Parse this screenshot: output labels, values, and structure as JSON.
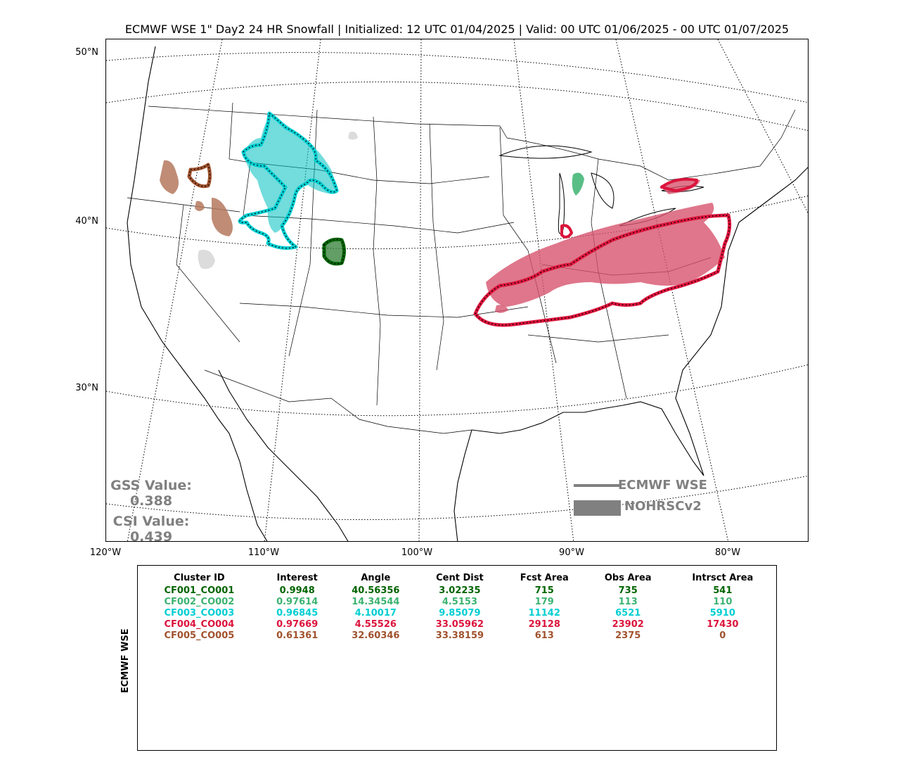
{
  "title": "ECMWF WSE 1\" Day2 24 HR Snowfall | Initialized: 12 UTC 01/04/2025 | Valid: 00 UTC 01/06/2025 - 00 UTC 01/07/2025",
  "lat_labels": [
    "50°N",
    "40°N",
    "30°N"
  ],
  "lon_labels": [
    "120°W",
    "110°W",
    "100°W",
    "90°W",
    "80°W"
  ],
  "scores": {
    "gss_label": "GSS Value:",
    "gss_value": "0.388",
    "csi_label": "CSI Value:",
    "csi_value": "0.439"
  },
  "legend": {
    "forecast": "ECMWF WSE",
    "observed": "NOHRSCv2",
    "forecast_color": "#808080",
    "observed_color": "#808080"
  },
  "table": {
    "side_label": "ECMWF WSE",
    "headers": [
      "Cluster ID",
      "Interest",
      "Angle",
      "Cent Dist",
      "Fcst Area",
      "Obs Area",
      "Intrsct Area"
    ],
    "rows": [
      {
        "color": "#006400",
        "cells": [
          "CF001_CO001",
          "0.9948",
          "40.56356",
          "3.02235",
          "715",
          "735",
          "541"
        ]
      },
      {
        "color": "#3cb371",
        "cells": [
          "CF002_CO002",
          "0.97614",
          "14.34544",
          "4.5153",
          "179",
          "113",
          "110"
        ]
      },
      {
        "color": "#00ced1",
        "cells": [
          "CF003_CO003",
          "0.96845",
          "4.10017",
          "9.85079",
          "11142",
          "6521",
          "5910"
        ]
      },
      {
        "color": "#dc143c",
        "cells": [
          "CF004_CO004",
          "0.97669",
          "4.55526",
          "33.05962",
          "29128",
          "23902",
          "17430"
        ]
      },
      {
        "color": "#a0522d",
        "cells": [
          "CF005_CO005",
          "0.61361",
          "32.60346",
          "33.38159",
          "613",
          "2375",
          "0"
        ]
      }
    ]
  },
  "clusters": [
    {
      "id": "CF001_CO001",
      "fill": "#2e7d32",
      "outline": "#006400"
    },
    {
      "id": "CF002_CO002",
      "fill": "#3cb371",
      "outline": "#3cb371"
    },
    {
      "id": "CF003_CO003",
      "fill": "#00c0c0",
      "outline": "#00ced1"
    },
    {
      "id": "CF004_CO004",
      "fill": "#d6506a",
      "outline": "#dc143c"
    },
    {
      "id": "CF005_CO005",
      "fill": "#b5785e",
      "outline": "#a0522d"
    }
  ]
}
